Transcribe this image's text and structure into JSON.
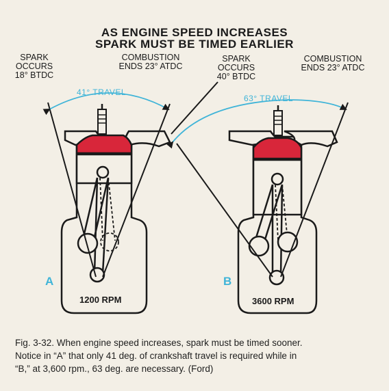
{
  "title": {
    "line1": "AS ENGINE SPEED INCREASES",
    "line2": "SPARK MUST BE TIMED EARLIER"
  },
  "engine_a": {
    "spark_label": {
      "line1": "SPARK",
      "line2": "OCCURS",
      "line3": "18° BTDC"
    },
    "combustion_label": {
      "line1": "COMBUSTION",
      "line2": "ENDS 23° ATDC"
    },
    "travel_label": "41° TRAVEL",
    "letter": "A",
    "rpm": "1200 RPM"
  },
  "engine_b": {
    "spark_label": {
      "line1": "SPARK",
      "line2": "OCCURS",
      "line3": "40° BTDC"
    },
    "combustion_label": {
      "line1": "COMBUSTION",
      "line2": "ENDS 23° ATDC"
    },
    "travel_label": "63° TRAVEL",
    "letter": "B",
    "rpm": "3600 RPM"
  },
  "caption": {
    "line1": "Fig. 3-32. When engine speed increases, spark must be timed sooner.",
    "line2": "Notice in “A” that only 41 deg. of crankshaft travel is required while in",
    "line3": "“B,” at 3,600 rpm., 63 deg. are necessary.    (Ford)"
  },
  "colors": {
    "piston_red": "#d8263a",
    "travel_cyan": "#3fb4d8",
    "ink": "#1a1a1a",
    "paper": "#f3efe6"
  }
}
